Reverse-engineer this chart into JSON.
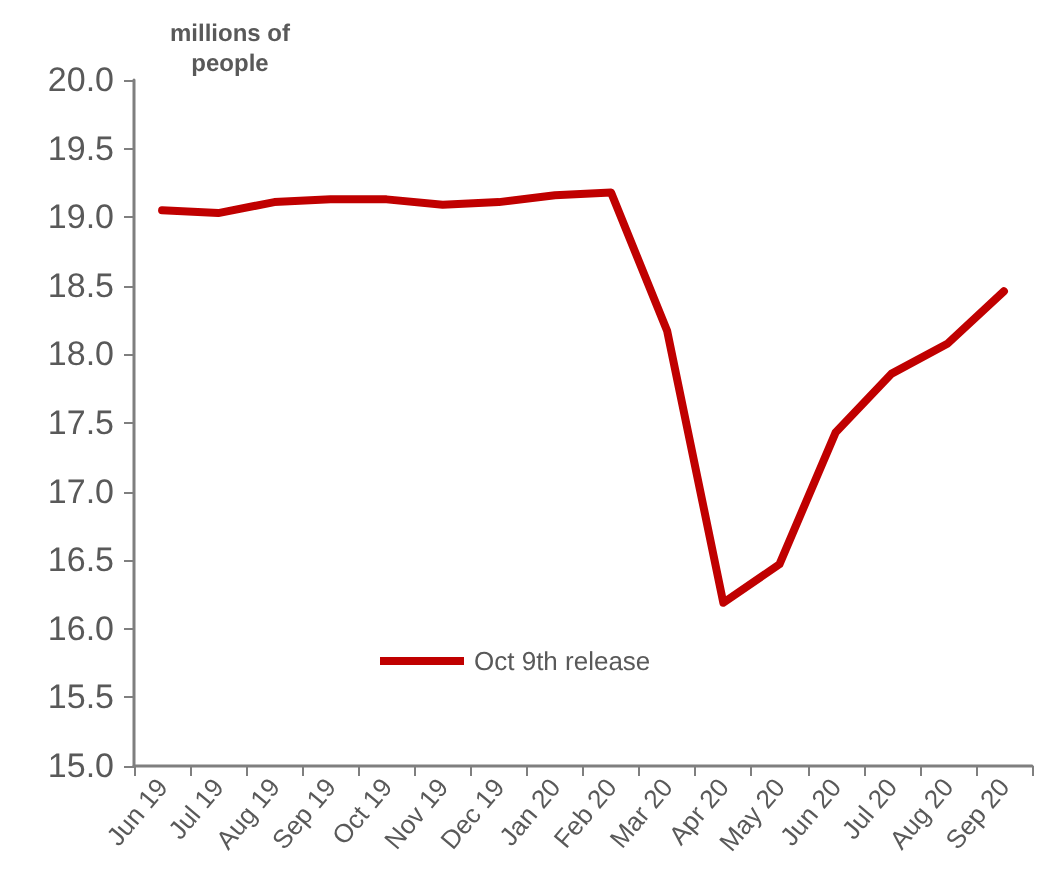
{
  "chart_data": {
    "type": "line",
    "ylabel": "millions of\npeople",
    "categories": [
      "Jun 19",
      "Jul 19",
      "Aug 19",
      "Sep 19",
      "Oct 19",
      "Nov 19",
      "Dec 19",
      "Jan 20",
      "Feb 20",
      "Mar 20",
      "Apr 20",
      "May 20",
      "Jun 20",
      "Jul 20",
      "Aug 20",
      "Sep 20"
    ],
    "series": [
      {
        "name": "Oct 9th release",
        "color": "#c00000",
        "values": [
          19.05,
          19.03,
          19.11,
          19.13,
          19.13,
          19.09,
          19.11,
          19.16,
          19.18,
          18.17,
          16.19,
          16.47,
          17.43,
          17.86,
          18.08,
          18.46
        ]
      }
    ],
    "ylim": [
      15,
      20
    ],
    "yticks": [
      {
        "value": 15,
        "label": "15.0"
      },
      15.5,
      {
        "value": 16,
        "label": "16.0"
      },
      16.5,
      {
        "value": 17,
        "label": "17.0"
      },
      17.5,
      {
        "value": 18,
        "label": "18.0"
      },
      18.5,
      {
        "value": 19,
        "label": "19.0"
      },
      19.5,
      {
        "value": 20,
        "label": "20.0"
      }
    ],
    "grid": false,
    "legend": "bottom left",
    "marker": "none",
    "line_style": "solid"
  }
}
